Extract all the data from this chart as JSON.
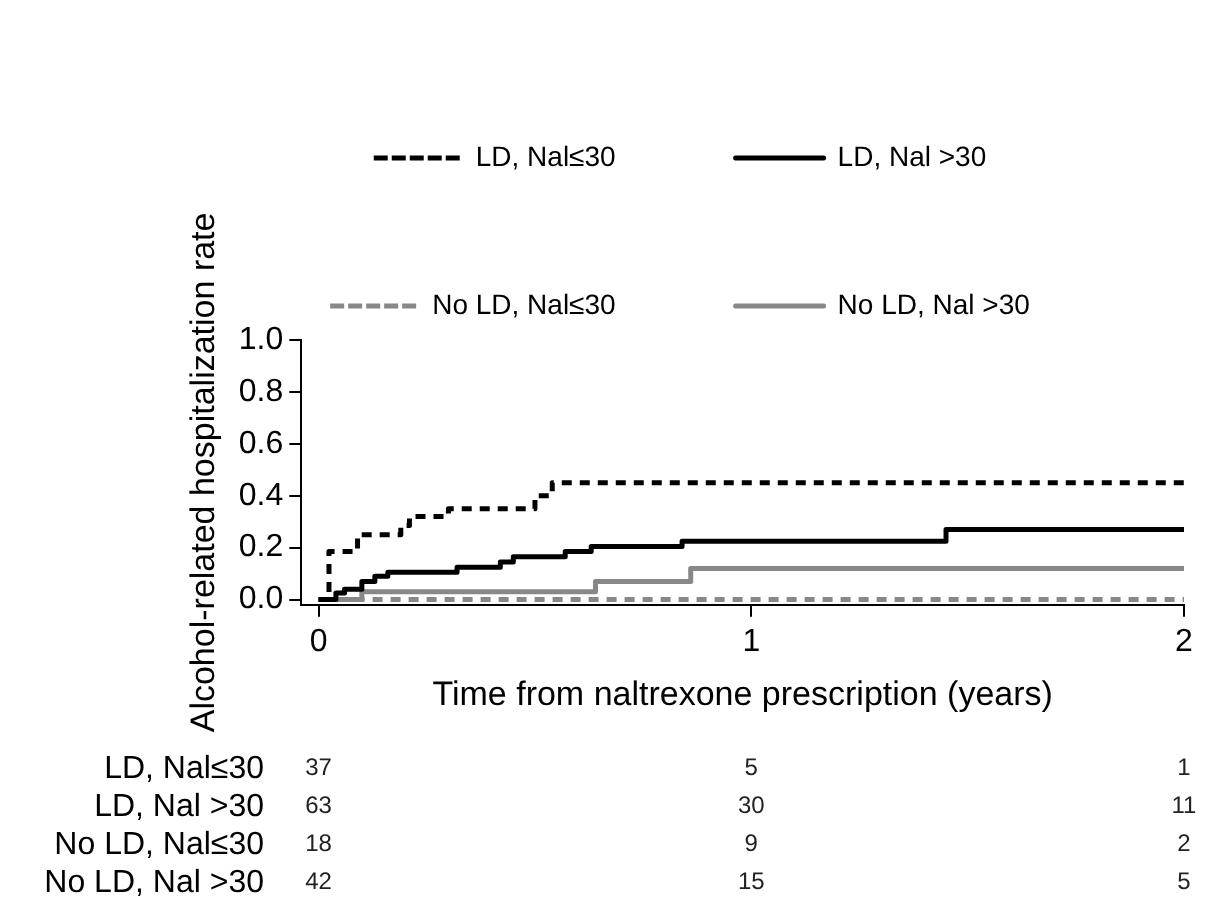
{
  "chart_data": {
    "type": "step",
    "xlabel": "Time from naltrexone prescription (years)",
    "ylabel": "Alcohol-related hospitalization rate",
    "xlim": [
      -0.04,
      2
    ],
    "xticks": [
      0,
      1,
      2
    ],
    "ylim": [
      -0.02,
      1
    ],
    "yticks": [
      {
        "value": 0,
        "label": "0.0"
      },
      {
        "value": 0.2,
        "label": "0.2"
      },
      {
        "value": 0.4,
        "label": "0.4"
      },
      {
        "value": 0.6,
        "label": "0.6"
      },
      {
        "value": 0.8,
        "label": "0.8"
      },
      {
        "value": 1,
        "label": "1.0"
      }
    ],
    "grid": false,
    "legend": "top",
    "marker": "none",
    "series": [
      {
        "name": "LD, Nal≤30",
        "color": "#000000",
        "line_style": "dashed",
        "x": [
          0,
          0.024,
          0.09,
          0.19,
          0.21,
          0.3,
          0.5,
          0.54,
          2
        ],
        "values": [
          0,
          0.185,
          0.25,
          0.285,
          0.32,
          0.35,
          0.4,
          0.45,
          0.45
        ]
      },
      {
        "name": "LD, Nal >30",
        "color": "#000000",
        "line_style": "solid",
        "x": [
          0,
          0.04,
          0.06,
          0.1,
          0.13,
          0.16,
          0.32,
          0.42,
          0.45,
          0.57,
          0.63,
          0.84,
          1.45,
          2
        ],
        "values": [
          0,
          0.025,
          0.04,
          0.07,
          0.09,
          0.105,
          0.125,
          0.145,
          0.165,
          0.185,
          0.205,
          0.225,
          0.27,
          0.27
        ]
      },
      {
        "name": "No LD, Nal≤30",
        "color": "#888888",
        "line_style": "dashed",
        "x": [
          0,
          2
        ],
        "values": [
          0,
          0
        ]
      },
      {
        "name": "No LD, Nal >30",
        "color": "#888888",
        "line_style": "solid",
        "x": [
          0,
          0.1,
          0.64,
          0.86,
          2
        ],
        "values": [
          0,
          0.03,
          0.07,
          0.12,
          0.12
        ]
      }
    ],
    "annotations": [
      "37",
      "5",
      "1",
      "63",
      "30",
      "11",
      "18",
      "9",
      "2",
      "42",
      "15",
      "5"
    ]
  }
}
